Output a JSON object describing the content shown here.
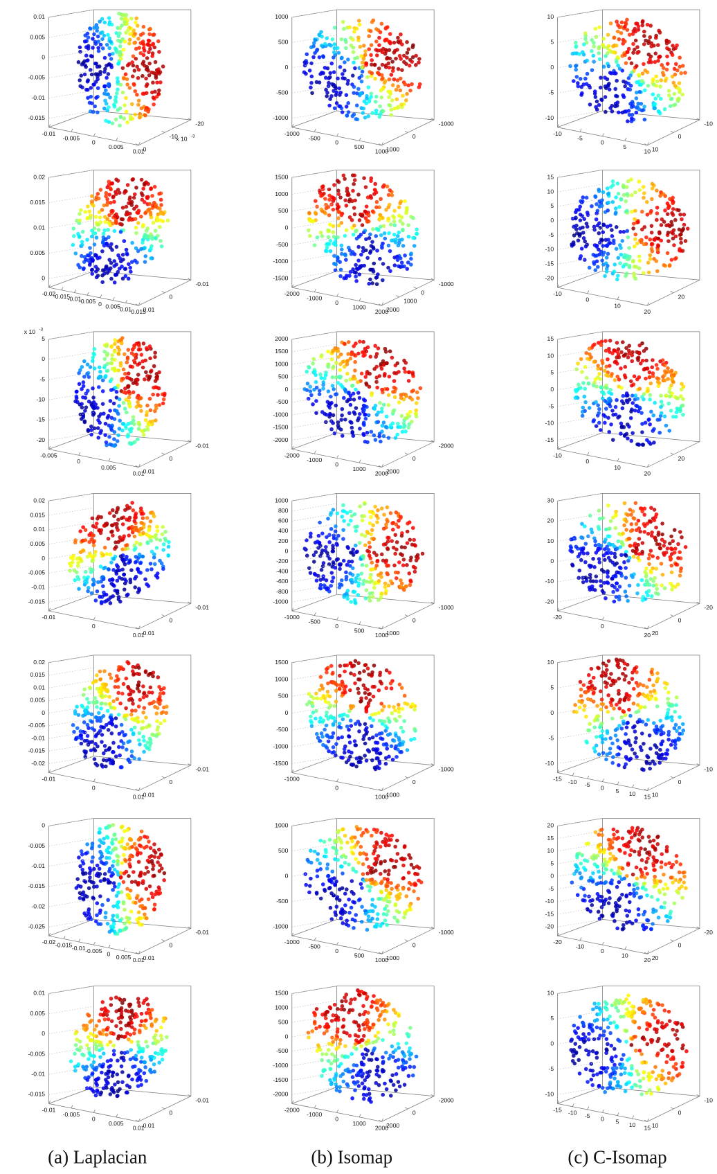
{
  "figure": {
    "captions": [
      "(a) Laplacian",
      "(b) Isomap",
      "(c) C-Isomap"
    ],
    "panels": [
      {
        "zticks": [
          0.01,
          0.005,
          0,
          -0.005,
          -0.01,
          -0.015
        ],
        "xticks": [
          -0.01,
          -0.005,
          0,
          0.005,
          0.01
        ],
        "yticks": [
          -20,
          -10,
          0
        ],
        "exponent": {
          "base": "x 10",
          "power": -3
        }
      },
      {
        "zticks": [
          1000,
          500,
          0,
          -500,
          -1000
        ],
        "xticks": [
          -1000,
          -500,
          0,
          500,
          1000
        ],
        "yticks": [
          -1000,
          0,
          1000
        ]
      },
      {
        "zticks": [
          10,
          5,
          0,
          -5,
          -10
        ],
        "xticks": [
          -10,
          -5,
          0,
          5,
          10
        ],
        "yticks": [
          -10,
          0,
          10
        ]
      },
      {
        "zticks": [
          0.02,
          0.015,
          0.01,
          0.005,
          0
        ],
        "xticks": [
          -0.02,
          -0.015,
          -0.01,
          -0.005,
          0,
          0.005,
          0.01,
          0.015
        ],
        "yticks": [
          -0.01,
          0,
          0.01
        ]
      },
      {
        "zticks": [
          1500,
          1000,
          500,
          0,
          -500,
          -1000,
          -1500
        ],
        "xticks": [
          -2000,
          -1000,
          0,
          1000,
          2000
        ],
        "yticks": [
          -1000,
          0,
          1000,
          2000
        ]
      },
      {
        "zticks": [
          15,
          10,
          5,
          0,
          -5,
          -10,
          -15,
          -20
        ],
        "xticks": [
          -10,
          0,
          10,
          20
        ],
        "yticks": [
          20
        ]
      },
      {
        "zticks": [
          5,
          0,
          -5,
          -10,
          -15,
          -20
        ],
        "xticks": [
          -0.005,
          0,
          0.005,
          0.01
        ],
        "yticks": [
          -0.01,
          0,
          0.01
        ],
        "exponent": {
          "base": "x 10",
          "power": -3
        }
      },
      {
        "zticks": [
          2000,
          1500,
          1000,
          500,
          0,
          -500,
          -1000,
          -1500,
          -2000
        ],
        "xticks": [
          -2000,
          -1000,
          0,
          1000,
          2000
        ],
        "yticks": [
          -2000,
          0,
          2000
        ]
      },
      {
        "zticks": [
          15,
          10,
          5,
          0,
          -5,
          -10,
          -15
        ],
        "xticks": [
          -10,
          0,
          10,
          20
        ],
        "yticks": [
          20
        ]
      },
      {
        "zticks": [
          0.02,
          0.015,
          0.01,
          0.005,
          0,
          -0.005,
          -0.01,
          -0.015
        ],
        "xticks": [
          -0.01,
          0,
          0.01
        ],
        "yticks": [
          -0.01,
          0,
          0.01
        ]
      },
      {
        "zticks": [
          1000,
          800,
          600,
          400,
          200,
          0,
          -200,
          -400,
          -600,
          -800,
          -1000
        ],
        "xticks": [
          -1000,
          -500,
          0,
          500,
          1000
        ],
        "yticks": [
          -1000,
          0,
          1000
        ]
      },
      {
        "zticks": [
          30,
          20,
          10,
          0,
          -10,
          -20
        ],
        "xticks": [
          -20,
          0,
          20
        ],
        "yticks": [
          -20,
          0,
          20
        ]
      },
      {
        "zticks": [
          0.02,
          0.015,
          0.01,
          0.005,
          0,
          -0.005,
          -0.01,
          -0.015,
          -0.02
        ],
        "xticks": [
          -0.01,
          0,
          0.01
        ],
        "yticks": [
          -0.01,
          0,
          0.01
        ]
      },
      {
        "zticks": [
          1500,
          1000,
          500,
          0,
          -500,
          -1000,
          -1500
        ],
        "xticks": [
          -1000,
          0,
          1000
        ],
        "yticks": [
          -1000,
          0,
          1000
        ]
      },
      {
        "zticks": [
          10,
          5,
          0,
          -5,
          -10
        ],
        "xticks": [
          -15,
          -10,
          -5,
          0,
          5,
          10,
          15
        ],
        "yticks": [
          -10,
          0,
          10
        ]
      },
      {
        "zticks": [
          0,
          -0.005,
          -0.01,
          -0.015,
          -0.02,
          -0.025
        ],
        "xticks": [
          -0.02,
          -0.015,
          -0.01,
          -0.005,
          0,
          0.005,
          0.01
        ],
        "yticks": [
          -0.01,
          0,
          0.01
        ]
      },
      {
        "zticks": [
          1000,
          500,
          0,
          -500,
          -1000
        ],
        "xticks": [
          -1000,
          -500,
          0,
          500,
          1000
        ],
        "yticks": [
          -1000,
          0,
          1000
        ]
      },
      {
        "zticks": [
          20,
          15,
          10,
          5,
          0,
          -5,
          -10,
          -15,
          -20
        ],
        "xticks": [
          -20,
          -10,
          0,
          10,
          20
        ],
        "yticks": [
          -20,
          0,
          20
        ]
      },
      {
        "zticks": [
          0.01,
          0.005,
          0,
          -0.005,
          -0.01,
          -0.015
        ],
        "xticks": [
          -0.01,
          -0.005,
          0,
          0.005,
          0.01
        ],
        "yticks": [
          -0.01,
          0,
          0.01
        ]
      },
      {
        "zticks": [
          1500,
          1000,
          500,
          0,
          -500,
          -1000,
          -1500,
          -2000
        ],
        "xticks": [
          -2000,
          -1000,
          0,
          1000,
          2000
        ],
        "yticks": [
          -2000,
          0,
          2000
        ]
      },
      {
        "zticks": [
          10,
          5,
          0,
          -5,
          -10
        ],
        "xticks": [
          -15,
          -10,
          -5,
          0,
          5,
          10,
          15
        ],
        "yticks": [
          -10,
          0,
          10
        ]
      }
    ]
  }
}
